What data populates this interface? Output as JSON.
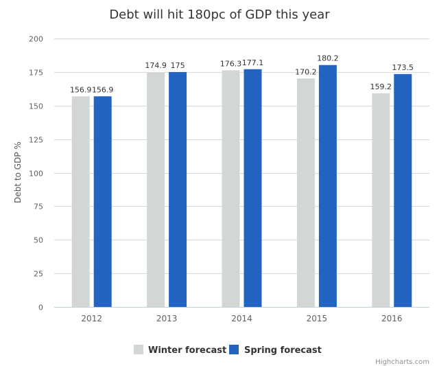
{
  "chart_data": {
    "type": "bar",
    "title": "Debt will hit 180pc of GDP this year",
    "xlabel": "",
    "ylabel": "Debt to GDP %",
    "categories": [
      "2012",
      "2013",
      "2014",
      "2015",
      "2016"
    ],
    "series": [
      {
        "name": "Winter forecast",
        "color": "#d3d7d4",
        "values": [
          156.9,
          174.9,
          176.3,
          170.2,
          159.2
        ]
      },
      {
        "name": "Spring forecast",
        "color": "#2364c2",
        "values": [
          156.9,
          175,
          177.1,
          180.2,
          173.5
        ]
      }
    ],
    "data_labels": [
      [
        "156.9",
        "174.9",
        "176.3",
        "170.2",
        "159.2"
      ],
      [
        "156.9",
        "175",
        "177.1",
        "180.2",
        "173.5"
      ]
    ],
    "ylim": [
      0,
      200
    ],
    "yticks": [
      0,
      25,
      50,
      75,
      100,
      125,
      150,
      175,
      200
    ],
    "grid": true,
    "legend_position": "bottom-center"
  },
  "credit": "Highcharts.com"
}
